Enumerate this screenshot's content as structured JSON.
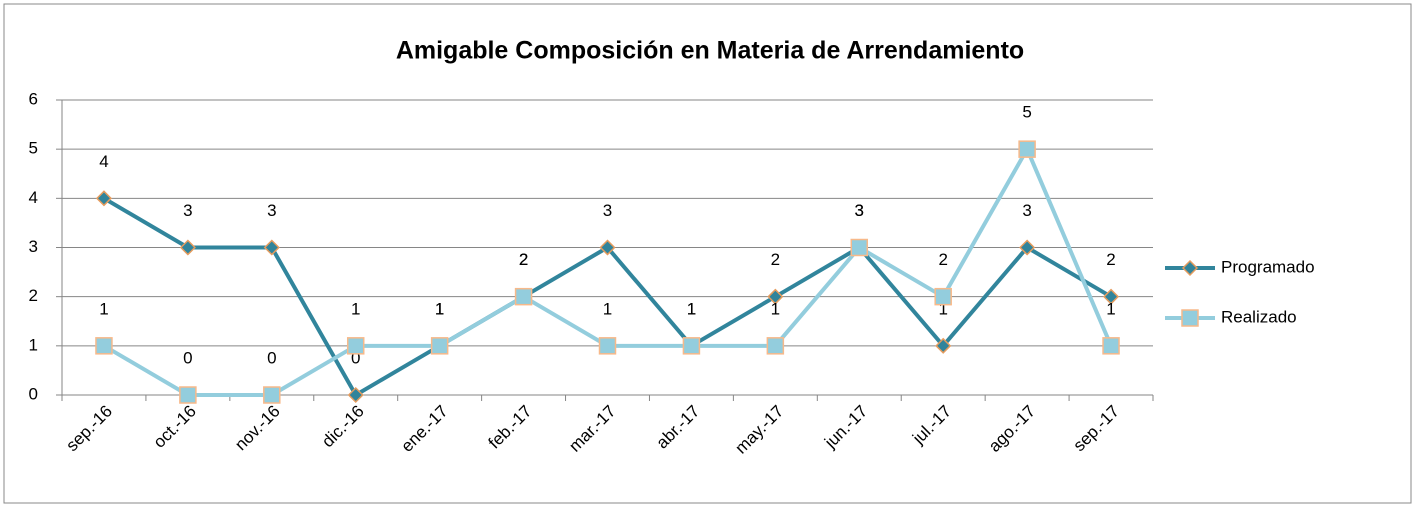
{
  "chart_data": {
    "type": "line",
    "title": "Amigable Composición en Materia de Arrendamiento",
    "categories": [
      "sep.-16",
      "oct.-16",
      "nov.-16",
      "dic.-16",
      "ene.-17",
      "feb.-17",
      "mar.-17",
      "abr.-17",
      "may.-17",
      "jun.-17",
      "jul.-17",
      "ago.-17",
      "sep.-17"
    ],
    "series": [
      {
        "name": "Programado",
        "color": "#31859c",
        "marker_color": "#31849b",
        "marker_edge": "#e59c5e",
        "marker": "diamond",
        "values": [
          4,
          3,
          3,
          0,
          1,
          2,
          3,
          1,
          2,
          3,
          1,
          3,
          2
        ]
      },
      {
        "name": "Realizado",
        "color": "#93cddd",
        "marker_color": "#93cddd",
        "marker_edge": "#f7b98a",
        "marker": "square",
        "values": [
          1,
          0,
          0,
          1,
          1,
          2,
          1,
          1,
          1,
          3,
          2,
          5,
          1
        ]
      }
    ],
    "ylim": [
      0,
      6
    ],
    "yticks": [
      0,
      1,
      2,
      3,
      4,
      5,
      6
    ],
    "grid": true,
    "legend": "right"
  }
}
